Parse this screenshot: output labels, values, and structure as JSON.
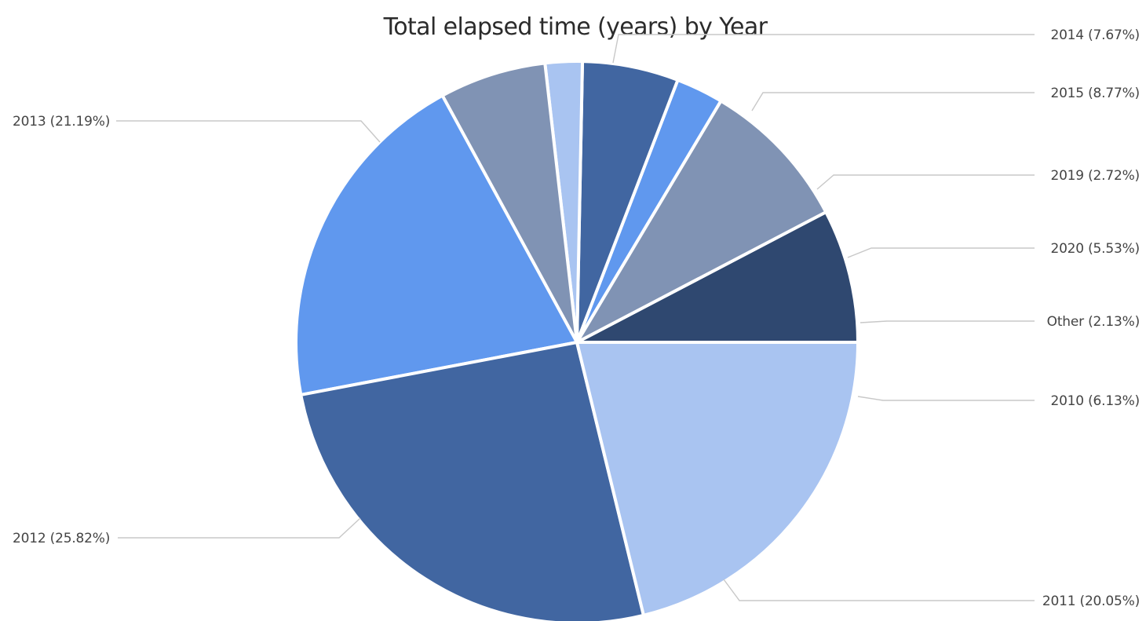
{
  "chart_data": {
    "type": "pie",
    "title": "Total elapsed time (years) by Year",
    "start_angle_deg": 0,
    "direction": "counterclockwise",
    "slices": [
      {
        "label": "2014 (7.67%)",
        "category": "2014",
        "percent": 7.67,
        "color": "#2f4870"
      },
      {
        "label": "2015 (8.77%)",
        "category": "2015",
        "percent": 8.77,
        "color": "#8093b4"
      },
      {
        "label": "2019 (2.72%)",
        "category": "2019",
        "percent": 2.72,
        "color": "#6098ee"
      },
      {
        "label": "2020 (5.53%)",
        "category": "2020",
        "percent": 5.53,
        "color": "#4166a1"
      },
      {
        "label": "Other (2.13%)",
        "category": "Other",
        "percent": 2.13,
        "color": "#a9c4f1"
      },
      {
        "label": "2010 (6.13%)",
        "category": "2010",
        "percent": 6.13,
        "color": "#8093b4"
      },
      {
        "label": "2011 (20.05%)",
        "category": "2011",
        "percent": 20.05,
        "color": "#6098ee"
      },
      {
        "label": "2012 (25.82%)",
        "category": "2012",
        "percent": 25.82,
        "color": "#4166a1"
      },
      {
        "label": "2013 (21.19%)",
        "category": "2013",
        "percent": 21.19,
        "color": "#a9c4f1"
      }
    ]
  }
}
